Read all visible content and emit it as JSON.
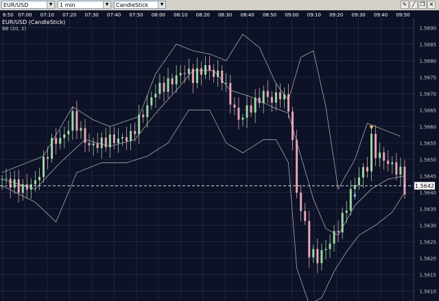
{
  "toolbar": {
    "symbol": "EUR/USD",
    "interval": "1 min",
    "chart_type": "CandleStick",
    "icons": [
      "pencil-icon",
      "line-icon",
      "restore-icon",
      "close-icon"
    ]
  },
  "colors": {
    "background": "#0d1226",
    "grid": "#2b3352",
    "up_candle": "#9fd6a3",
    "down_candle": "#e6a6b4",
    "band": "#c8c8c8",
    "price_line": "#ffffff",
    "signal_sell": "#f0c070",
    "signal_buy": "#7ec8ff"
  },
  "chart_data": {
    "type": "candlestick",
    "title": "EUR/USD (CandleStick)",
    "indicator_label": "BB (20, 2)",
    "x_ticks": [
      "6:50",
      "07:00",
      "07:10",
      "07:20",
      "07:30",
      "07:40",
      "07:50",
      "08:00",
      "08:10",
      "08:20",
      "08:30",
      "08:40",
      "08:50",
      "09:00",
      "09:10",
      "09:20",
      "09:30",
      "09:40",
      "09:50"
    ],
    "y_ticks": [
      1.561,
      1.5615,
      1.562,
      1.5625,
      1.563,
      1.5635,
      1.564,
      1.5645,
      1.565,
      1.5655,
      1.566,
      1.5665,
      1.567,
      1.5675,
      1.568,
      1.5685,
      1.569
    ],
    "ylim": [
      1.5607,
      1.5693
    ],
    "current_price": "1.5642",
    "current_price_value": 1.5642,
    "close_path": [
      [
        0,
        1.5644
      ],
      [
        5,
        1.5641
      ],
      [
        8,
        1.5643
      ],
      [
        10,
        1.5649
      ],
      [
        12,
        1.5655
      ],
      [
        15,
        1.5657
      ],
      [
        17,
        1.5663
      ],
      [
        19,
        1.5658
      ],
      [
        21,
        1.5654
      ],
      [
        24,
        1.5655
      ],
      [
        26,
        1.5656
      ],
      [
        28,
        1.5656
      ],
      [
        31,
        1.5657
      ],
      [
        33,
        1.5662
      ],
      [
        35,
        1.5666
      ],
      [
        37,
        1.5671
      ],
      [
        40,
        1.5673
      ],
      [
        42,
        1.5675
      ],
      [
        44,
        1.5677
      ],
      [
        46,
        1.5675
      ],
      [
        49,
        1.5678
      ],
      [
        51,
        1.5676
      ],
      [
        53,
        1.5675
      ],
      [
        55,
        1.5668
      ],
      [
        57,
        1.5662
      ],
      [
        59,
        1.5665
      ],
      [
        61,
        1.5667
      ],
      [
        63,
        1.567
      ],
      [
        65,
        1.5668
      ],
      [
        67,
        1.567
      ],
      [
        69,
        1.5666
      ],
      [
        70,
        1.5655
      ],
      [
        71,
        1.564
      ],
      [
        73,
        1.563
      ],
      [
        74,
        1.5622
      ],
      [
        76,
        1.562
      ],
      [
        78,
        1.5623
      ],
      [
        80,
        1.5627
      ],
      [
        82,
        1.5632
      ],
      [
        84,
        1.564
      ],
      [
        86,
        1.5645
      ],
      [
        88,
        1.5648
      ],
      [
        89,
        1.5656
      ],
      [
        90,
        1.5652
      ],
      [
        92,
        1.565
      ],
      [
        94,
        1.5648
      ],
      [
        96,
        1.5646
      ],
      [
        97,
        1.5641
      ]
    ],
    "bollinger": {
      "upper": [
        [
          0,
          1.5646
        ],
        [
          10,
          1.5651
        ],
        [
          17,
          1.5666
        ],
        [
          22,
          1.5662
        ],
        [
          26,
          1.566
        ],
        [
          33,
          1.5663
        ],
        [
          37,
          1.5676
        ],
        [
          42,
          1.5685
        ],
        [
          46,
          1.5683
        ],
        [
          50,
          1.5682
        ],
        [
          54,
          1.568
        ],
        [
          58,
          1.5688
        ],
        [
          62,
          1.5684
        ],
        [
          66,
          1.5673
        ],
        [
          69,
          1.5668
        ],
        [
          72,
          1.5681
        ],
        [
          75,
          1.5683
        ],
        [
          78,
          1.5666
        ],
        [
          81,
          1.5641
        ],
        [
          85,
          1.565
        ],
        [
          88,
          1.5661
        ],
        [
          92,
          1.5659
        ],
        [
          96,
          1.5657
        ]
      ],
      "lower": [
        [
          0,
          1.5642
        ],
        [
          8,
          1.5637
        ],
        [
          13,
          1.5631
        ],
        [
          18,
          1.5646
        ],
        [
          24,
          1.5649
        ],
        [
          30,
          1.5649
        ],
        [
          35,
          1.5651
        ],
        [
          40,
          1.5655
        ],
        [
          45,
          1.5665
        ],
        [
          50,
          1.5665
        ],
        [
          54,
          1.5655
        ],
        [
          58,
          1.5652
        ],
        [
          63,
          1.5656
        ],
        [
          66,
          1.5656
        ],
        [
          69,
          1.5649
        ],
        [
          71,
          1.5617
        ],
        [
          74,
          1.5606
        ],
        [
          77,
          1.5608
        ],
        [
          80,
          1.5616
        ],
        [
          83,
          1.5622
        ],
        [
          86,
          1.5627
        ],
        [
          90,
          1.563
        ],
        [
          94,
          1.5634
        ],
        [
          97,
          1.564
        ]
      ],
      "middle": [
        [
          0,
          1.5644
        ],
        [
          8,
          1.5641
        ],
        [
          14,
          1.5649
        ],
        [
          20,
          1.5656
        ],
        [
          26,
          1.5654
        ],
        [
          32,
          1.5656
        ],
        [
          37,
          1.5664
        ],
        [
          42,
          1.5671
        ],
        [
          46,
          1.5677
        ],
        [
          51,
          1.5677
        ],
        [
          55,
          1.5671
        ],
        [
          60,
          1.5669
        ],
        [
          65,
          1.5666
        ],
        [
          69,
          1.5664
        ],
        [
          72,
          1.5651
        ],
        [
          75,
          1.5638
        ],
        [
          78,
          1.5629
        ],
        [
          81,
          1.5627
        ],
        [
          85,
          1.5636
        ],
        [
          89,
          1.5641
        ],
        [
          93,
          1.5644
        ],
        [
          97,
          1.5645
        ]
      ]
    },
    "signals": [
      {
        "type": "sell",
        "x": 89,
        "price": 1.5659
      },
      {
        "type": "buy",
        "x": 85,
        "price": 1.564
      }
    ]
  }
}
